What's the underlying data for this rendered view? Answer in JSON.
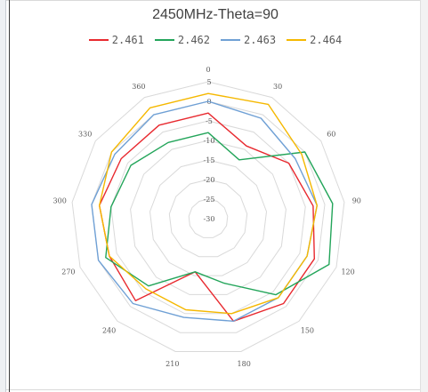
{
  "chart_data": {
    "type": "radar",
    "title": "2450MHz-Theta=90",
    "categories": [
      "0",
      "30",
      "60",
      "90",
      "120",
      "150",
      "180",
      "210",
      "240",
      "270",
      "300",
      "330",
      "360"
    ],
    "ring_values": [
      5,
      0,
      -5,
      -10,
      -15,
      -20,
      -25,
      -30
    ],
    "r_range": [
      -30,
      5
    ],
    "grid": true,
    "legend_position": "top",
    "series": [
      {
        "name": "2.461",
        "color": "#e8292f",
        "values": [
          -3,
          -9,
          -5,
          -3,
          -1,
          -1,
          -3,
          -16,
          -2,
          -3,
          -2,
          -3,
          -3
        ]
      },
      {
        "name": "2.462",
        "color": "#23a55a",
        "values": [
          -8,
          -13,
          0,
          2,
          3,
          -4,
          -13,
          -16,
          -7,
          -2,
          -5,
          -6,
          -8
        ]
      },
      {
        "name": "2.463",
        "color": "#6fa0d5",
        "values": [
          0,
          -1,
          -3,
          -2,
          -3,
          -3,
          -3,
          -4,
          -1,
          0,
          0,
          -1,
          0
        ]
      },
      {
        "name": "2.464",
        "color": "#f5b800",
        "values": [
          2,
          3,
          -1,
          -2,
          -3,
          -3,
          -5,
          -6,
          -6,
          -3,
          -2,
          0,
          2
        ]
      }
    ]
  }
}
